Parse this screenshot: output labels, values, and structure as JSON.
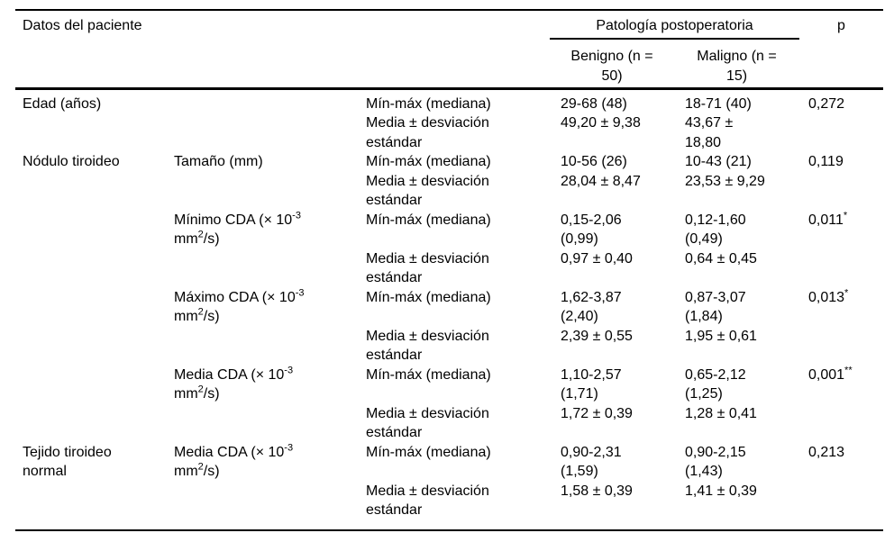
{
  "colors": {
    "text": "#000000",
    "rule": "#000000",
    "background": "#ffffff"
  },
  "table": {
    "header": {
      "col1": "Datos del paciente",
      "span": "Patología postoperatoria",
      "p": "p",
      "benigno": "Benigno (n =\n50)",
      "maligno": "Maligno (n =\n15)"
    },
    "rows": [
      {
        "group": "Edad (años)",
        "stat": "Mín-máx (mediana)",
        "benigno": "29-68 (48)",
        "maligno": "18-71 (40)",
        "p": "0,272"
      },
      {
        "stat": "Media ± desviación\nestándar",
        "benigno": "49,20 ± 9,38",
        "maligno": "43,67 ±\n18,80"
      },
      {
        "group": "Nódulo tiroideo",
        "sub_t1": "Tamaño (mm)",
        "stat": "Mín-máx (mediana)",
        "benigno": "10-56 (26)",
        "maligno": "10-43 (21)",
        "p": "0,119"
      },
      {
        "stat": "Media ± desviación\nestándar",
        "benigno": "28,04 ± 8,47",
        "maligno": "23,53 ± 9,29"
      },
      {
        "sub_t1": "Mínimo CDA (× 10",
        "sub_sup1": "-3",
        "sub_t2": "\nmm",
        "sub_sup2": "2",
        "sub_t3": "/s)",
        "stat": "Mín-máx (mediana)",
        "benigno": "0,15-2,06\n(0,99)",
        "maligno": "0,12-1,60\n(0,49)",
        "p": "0,011",
        "p_sup": "*"
      },
      {
        "stat": "Media ± desviación\nestándar",
        "benigno": "0,97 ± 0,40",
        "maligno": "0,64 ± 0,45"
      },
      {
        "sub_t1": "Máximo CDA (× 10",
        "sub_sup1": "-3",
        "sub_t2": "\nmm",
        "sub_sup2": "2",
        "sub_t3": "/s)",
        "stat": "Mín-máx (mediana)",
        "benigno": "1,62-3,87\n(2,40)",
        "maligno": "0,87-3,07\n(1,84)",
        "p": "0,013",
        "p_sup": "*"
      },
      {
        "stat": "Media ± desviación\nestándar",
        "benigno": "2,39 ± 0,55",
        "maligno": "1,95 ± 0,61"
      },
      {
        "sub_t1": "Media CDA (× 10",
        "sub_sup1": "-3",
        "sub_t2": "\nmm",
        "sub_sup2": "2",
        "sub_t3": "/s)",
        "stat": "Mín-máx (mediana)",
        "benigno": "1,10-2,57\n(1,71)",
        "maligno": "0,65-2,12\n(1,25)",
        "p": "0,001",
        "p_sup": "**"
      },
      {
        "stat": "Media ± desviación\nestándar",
        "benigno": "1,72 ± 0,39",
        "maligno": "1,28 ± 0,41"
      },
      {
        "group": "Tejido tiroideo\nnormal",
        "sub_t1": "Media CDA (× 10",
        "sub_sup1": "-3",
        "sub_t2": "\nmm",
        "sub_sup2": "2",
        "sub_t3": "/s)",
        "stat": "Mín-máx (mediana)",
        "benigno": "0,90-2,31\n(1,59)",
        "maligno": "0,90-2,15\n(1,43)",
        "p": "0,213"
      },
      {
        "stat": "Media ± desviación\nestándar",
        "benigno": "1,58 ± 0,39",
        "maligno": "1,41 ± 0,39"
      }
    ]
  }
}
